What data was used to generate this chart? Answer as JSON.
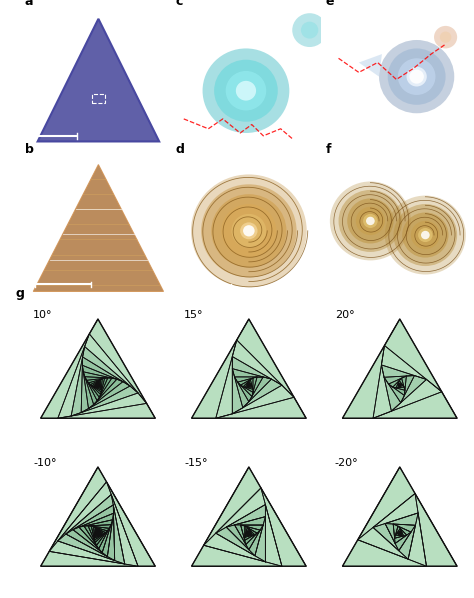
{
  "panel_labels": [
    "a",
    "b",
    "c",
    "d",
    "e",
    "f",
    "g"
  ],
  "angle_labels": [
    "10°",
    "15°",
    "20°",
    "-10°",
    "-15°",
    "-20°"
  ],
  "angles_deg": [
    10,
    15,
    20,
    -10,
    -15,
    -20
  ],
  "n_iterations": 18,
  "light_green": "#b8dfc0",
  "mid_green": "#5aab72",
  "dark_green": "#1e6b3a",
  "edge_color": "#111111",
  "bg_color": "#ffffff",
  "photo_panels": {
    "a": {
      "bg": "#c8607a",
      "tri_fill": "#6060a8",
      "tri_edge": "#4848a0"
    },
    "b": {
      "bg": "#7a5228"
    },
    "c": {
      "bg": "#7888b8"
    },
    "d": {
      "bg": "#7a5c28"
    },
    "e": {
      "bg": "#8888b8"
    },
    "f": {
      "bg": "#7a5c28"
    }
  }
}
